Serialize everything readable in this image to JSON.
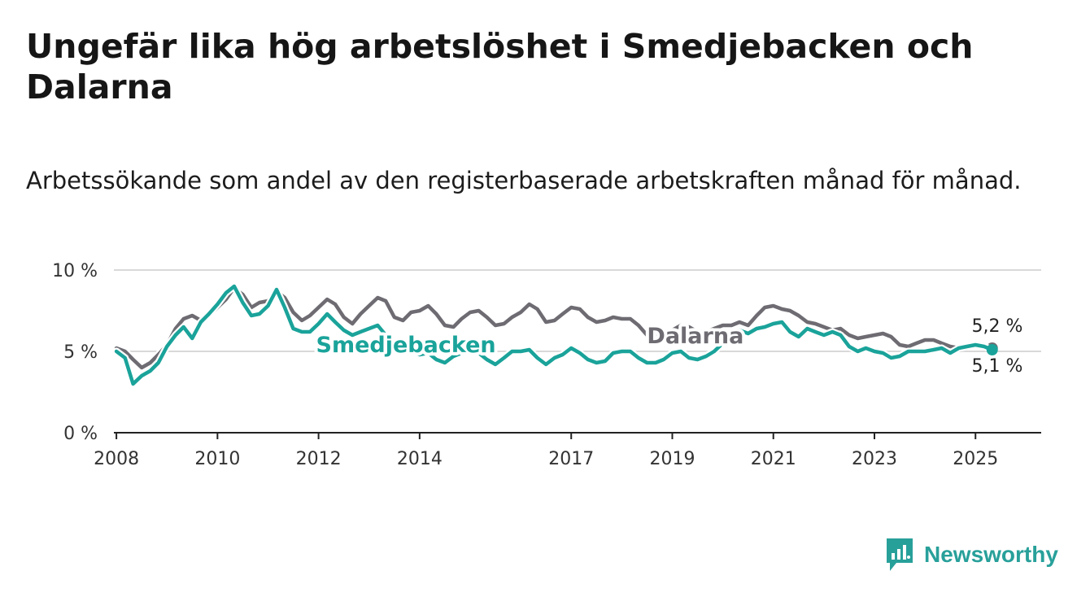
{
  "title": "Ungefär lika hög arbetslöshet i Smedjebacken och Dalarna",
  "subtitle": "Arbetssökande som andel av den registerbaserade arbetskraften månad för månad.",
  "brand": {
    "name": "Newsworthy",
    "icon": "newsworthy-logo-icon",
    "color": "#28a09a"
  },
  "chart_data": {
    "type": "line",
    "xlabel": "",
    "ylabel": "",
    "xlim": [
      2007.95,
      2026.3
    ],
    "ylim": [
      0,
      10
    ],
    "x_ticks": [
      2008,
      2010,
      2012,
      2014,
      2017,
      2019,
      2021,
      2023,
      2025
    ],
    "y_ticks": [
      {
        "value": 0,
        "label": "0 %"
      },
      {
        "value": 5,
        "label": "5 %"
      },
      {
        "value": 10,
        "label": "10 %"
      }
    ],
    "grid": "horizontal",
    "legend": "inline labels",
    "series": [
      {
        "name": "Dalarna",
        "color": "#6e6c72",
        "end_label": "5,2 %",
        "points": [
          [
            2008.0,
            5.2
          ],
          [
            2008.17,
            5.0
          ],
          [
            2008.33,
            4.5
          ],
          [
            2008.5,
            4.0
          ],
          [
            2008.67,
            4.3
          ],
          [
            2008.83,
            4.8
          ],
          [
            2009.0,
            5.4
          ],
          [
            2009.17,
            6.4
          ],
          [
            2009.33,
            7.0
          ],
          [
            2009.5,
            7.2
          ],
          [
            2009.67,
            6.9
          ],
          [
            2009.83,
            7.2
          ],
          [
            2010.0,
            7.7
          ],
          [
            2010.17,
            8.2
          ],
          [
            2010.33,
            8.9
          ],
          [
            2010.5,
            8.5
          ],
          [
            2010.67,
            7.7
          ],
          [
            2010.83,
            8.0
          ],
          [
            2011.0,
            8.1
          ],
          [
            2011.17,
            8.7
          ],
          [
            2011.33,
            8.3
          ],
          [
            2011.5,
            7.4
          ],
          [
            2011.67,
            6.9
          ],
          [
            2011.83,
            7.2
          ],
          [
            2012.0,
            7.7
          ],
          [
            2012.17,
            8.2
          ],
          [
            2012.33,
            7.9
          ],
          [
            2012.5,
            7.1
          ],
          [
            2012.67,
            6.7
          ],
          [
            2012.83,
            7.3
          ],
          [
            2013.0,
            7.8
          ],
          [
            2013.17,
            8.3
          ],
          [
            2013.33,
            8.1
          ],
          [
            2013.5,
            7.1
          ],
          [
            2013.67,
            6.9
          ],
          [
            2013.83,
            7.4
          ],
          [
            2014.0,
            7.5
          ],
          [
            2014.17,
            7.8
          ],
          [
            2014.33,
            7.3
          ],
          [
            2014.5,
            6.6
          ],
          [
            2014.67,
            6.5
          ],
          [
            2014.83,
            7.0
          ],
          [
            2015.0,
            7.4
          ],
          [
            2015.17,
            7.5
          ],
          [
            2015.33,
            7.1
          ],
          [
            2015.5,
            6.6
          ],
          [
            2015.67,
            6.7
          ],
          [
            2015.83,
            7.1
          ],
          [
            2016.0,
            7.4
          ],
          [
            2016.17,
            7.9
          ],
          [
            2016.33,
            7.6
          ],
          [
            2016.5,
            6.8
          ],
          [
            2016.67,
            6.9
          ],
          [
            2016.83,
            7.3
          ],
          [
            2017.0,
            7.7
          ],
          [
            2017.17,
            7.6
          ],
          [
            2017.33,
            7.1
          ],
          [
            2017.5,
            6.8
          ],
          [
            2017.67,
            6.9
          ],
          [
            2017.83,
            7.1
          ],
          [
            2018.0,
            7.0
          ],
          [
            2018.17,
            7.0
          ],
          [
            2018.33,
            6.6
          ],
          [
            2018.5,
            6.0
          ],
          [
            2018.67,
            6.0
          ],
          [
            2018.83,
            6.2
          ],
          [
            2019.0,
            6.3
          ],
          [
            2019.17,
            6.6
          ],
          [
            2019.33,
            6.5
          ],
          [
            2019.5,
            6.2
          ],
          [
            2019.67,
            6.2
          ],
          [
            2019.83,
            6.4
          ],
          [
            2020.0,
            6.6
          ],
          [
            2020.17,
            6.6
          ],
          [
            2020.33,
            6.8
          ],
          [
            2020.5,
            6.6
          ],
          [
            2020.67,
            7.2
          ],
          [
            2020.83,
            7.7
          ],
          [
            2021.0,
            7.8
          ],
          [
            2021.17,
            7.6
          ],
          [
            2021.33,
            7.5
          ],
          [
            2021.5,
            7.2
          ],
          [
            2021.67,
            6.8
          ],
          [
            2021.83,
            6.7
          ],
          [
            2022.0,
            6.5
          ],
          [
            2022.17,
            6.3
          ],
          [
            2022.33,
            6.4
          ],
          [
            2022.5,
            6.0
          ],
          [
            2022.67,
            5.8
          ],
          [
            2022.83,
            5.9
          ],
          [
            2023.0,
            6.0
          ],
          [
            2023.17,
            6.1
          ],
          [
            2023.33,
            5.9
          ],
          [
            2023.5,
            5.4
          ],
          [
            2023.67,
            5.3
          ],
          [
            2023.83,
            5.5
          ],
          [
            2024.0,
            5.7
          ],
          [
            2024.17,
            5.7
          ],
          [
            2024.33,
            5.5
          ],
          [
            2024.5,
            5.3
          ],
          [
            2024.67,
            5.2
          ],
          [
            2024.83,
            5.3
          ],
          [
            2025.0,
            5.5
          ],
          [
            2025.17,
            5.4
          ],
          [
            2025.33,
            5.2
          ]
        ]
      },
      {
        "name": "Smedjebacken",
        "color": "#1aa39a",
        "end_label": "5,1 %",
        "points": [
          [
            2008.0,
            5.0
          ],
          [
            2008.17,
            4.6
          ],
          [
            2008.33,
            3.0
          ],
          [
            2008.5,
            3.5
          ],
          [
            2008.67,
            3.8
          ],
          [
            2008.83,
            4.3
          ],
          [
            2009.0,
            5.3
          ],
          [
            2009.17,
            6.0
          ],
          [
            2009.33,
            6.5
          ],
          [
            2009.5,
            5.8
          ],
          [
            2009.67,
            6.8
          ],
          [
            2009.83,
            7.3
          ],
          [
            2010.0,
            7.9
          ],
          [
            2010.17,
            8.6
          ],
          [
            2010.33,
            9.0
          ],
          [
            2010.5,
            8.0
          ],
          [
            2010.67,
            7.2
          ],
          [
            2010.83,
            7.3
          ],
          [
            2011.0,
            7.8
          ],
          [
            2011.17,
            8.8
          ],
          [
            2011.33,
            7.7
          ],
          [
            2011.5,
            6.4
          ],
          [
            2011.67,
            6.2
          ],
          [
            2011.83,
            6.2
          ],
          [
            2012.0,
            6.7
          ],
          [
            2012.17,
            7.3
          ],
          [
            2012.33,
            6.8
          ],
          [
            2012.5,
            6.3
          ],
          [
            2012.67,
            6.0
          ],
          [
            2012.83,
            6.2
          ],
          [
            2013.0,
            6.4
          ],
          [
            2013.17,
            6.6
          ],
          [
            2013.33,
            6.0
          ],
          [
            2013.5,
            5.5
          ],
          [
            2013.67,
            5.2
          ],
          [
            2013.83,
            5.0
          ],
          [
            2014.0,
            4.8
          ],
          [
            2014.17,
            4.9
          ],
          [
            2014.33,
            4.5
          ],
          [
            2014.5,
            4.3
          ],
          [
            2014.67,
            4.7
          ],
          [
            2014.83,
            4.9
          ],
          [
            2015.0,
            5.0
          ],
          [
            2015.17,
            4.9
          ],
          [
            2015.33,
            4.5
          ],
          [
            2015.5,
            4.2
          ],
          [
            2015.67,
            4.6
          ],
          [
            2015.83,
            5.0
          ],
          [
            2016.0,
            5.0
          ],
          [
            2016.17,
            5.1
          ],
          [
            2016.33,
            4.6
          ],
          [
            2016.5,
            4.2
          ],
          [
            2016.67,
            4.6
          ],
          [
            2016.83,
            4.8
          ],
          [
            2017.0,
            5.2
          ],
          [
            2017.17,
            4.9
          ],
          [
            2017.33,
            4.5
          ],
          [
            2017.5,
            4.3
          ],
          [
            2017.67,
            4.4
          ],
          [
            2017.83,
            4.9
          ],
          [
            2018.0,
            5.0
          ],
          [
            2018.17,
            5.0
          ],
          [
            2018.33,
            4.6
          ],
          [
            2018.5,
            4.3
          ],
          [
            2018.67,
            4.3
          ],
          [
            2018.83,
            4.5
          ],
          [
            2019.0,
            4.9
          ],
          [
            2019.17,
            5.0
          ],
          [
            2019.33,
            4.6
          ],
          [
            2019.5,
            4.5
          ],
          [
            2019.67,
            4.7
          ],
          [
            2019.83,
            5.0
          ],
          [
            2020.0,
            5.5
          ],
          [
            2020.17,
            6.0
          ],
          [
            2020.33,
            6.3
          ],
          [
            2020.5,
            6.1
          ],
          [
            2020.67,
            6.4
          ],
          [
            2020.83,
            6.5
          ],
          [
            2021.0,
            6.7
          ],
          [
            2021.17,
            6.8
          ],
          [
            2021.33,
            6.2
          ],
          [
            2021.5,
            5.9
          ],
          [
            2021.67,
            6.4
          ],
          [
            2021.83,
            6.2
          ],
          [
            2022.0,
            6.0
          ],
          [
            2022.17,
            6.2
          ],
          [
            2022.33,
            6.0
          ],
          [
            2022.5,
            5.3
          ],
          [
            2022.67,
            5.0
          ],
          [
            2022.83,
            5.2
          ],
          [
            2023.0,
            5.0
          ],
          [
            2023.17,
            4.9
          ],
          [
            2023.33,
            4.6
          ],
          [
            2023.5,
            4.7
          ],
          [
            2023.67,
            5.0
          ],
          [
            2023.83,
            5.0
          ],
          [
            2024.0,
            5.0
          ],
          [
            2024.17,
            5.1
          ],
          [
            2024.33,
            5.2
          ],
          [
            2024.5,
            4.9
          ],
          [
            2024.67,
            5.2
          ],
          [
            2024.83,
            5.3
          ],
          [
            2025.0,
            5.4
          ],
          [
            2025.17,
            5.3
          ],
          [
            2025.33,
            5.1
          ]
        ]
      }
    ]
  }
}
